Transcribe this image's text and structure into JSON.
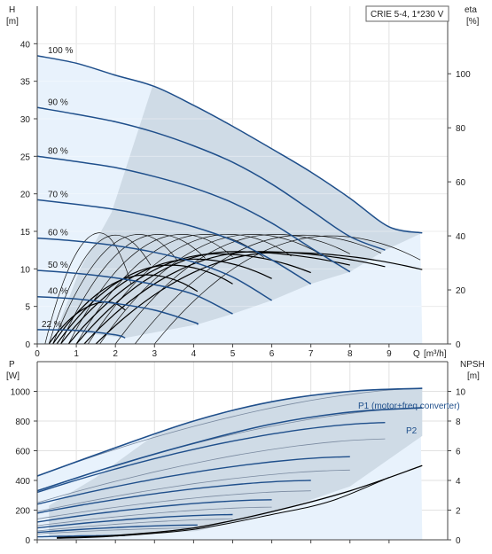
{
  "chart_data": [
    {
      "type": "line",
      "title": "CRIE 5-4, 1*230 V",
      "ylabel": "H",
      "yunit": "[m]",
      "y2label": "eta",
      "y2unit": "[%]",
      "xlabel": "Q",
      "xunit": "[m³/h]",
      "xlim": [
        0,
        10.5
      ],
      "ylim": [
        0,
        45
      ],
      "y2lim": [
        0,
        125
      ],
      "xticks": [
        0,
        1,
        2,
        3,
        4,
        5,
        6,
        7,
        8,
        9
      ],
      "yticks": [
        0,
        5,
        10,
        15,
        20,
        25,
        30,
        35,
        40
      ],
      "y2ticks": [
        0,
        20,
        40,
        60,
        80,
        100
      ],
      "grid": true,
      "series": [
        {
          "name": "100 %",
          "q_max": 9.85,
          "values": [
            [
              0,
              38.4
            ],
            [
              1,
              37.4
            ],
            [
              2,
              35.8
            ],
            [
              3,
              34.3
            ],
            [
              4,
              31.8
            ],
            [
              5,
              29.0
            ],
            [
              6,
              26.0
            ],
            [
              7,
              22.9
            ],
            [
              8,
              19.4
            ],
            [
              9,
              15.6
            ],
            [
              9.85,
              14.8
            ]
          ]
        },
        {
          "name": "90 %",
          "q_max": 8.9,
          "values": [
            [
              0,
              31.5
            ],
            [
              1,
              30.6
            ],
            [
              2,
              29.6
            ],
            [
              3,
              28.2
            ],
            [
              4,
              26.4
            ],
            [
              5,
              24.2
            ],
            [
              6,
              21.3
            ],
            [
              7,
              17.8
            ],
            [
              8,
              14.3
            ],
            [
              8.9,
              12.5
            ]
          ]
        },
        {
          "name": "80 %",
          "q_max": 8.0,
          "values": [
            [
              0,
              25.0
            ],
            [
              1,
              24.3
            ],
            [
              2,
              23.5
            ],
            [
              3,
              22.3
            ],
            [
              4,
              20.8
            ],
            [
              5,
              18.8
            ],
            [
              6,
              16.1
            ],
            [
              7,
              12.8
            ],
            [
              8,
              9.6
            ]
          ]
        },
        {
          "name": "70 %",
          "q_max": 7.0,
          "values": [
            [
              0,
              19.2
            ],
            [
              1,
              18.6
            ],
            [
              2,
              17.9
            ],
            [
              3,
              16.9
            ],
            [
              4,
              15.6
            ],
            [
              5,
              13.8
            ],
            [
              6,
              11.2
            ],
            [
              7,
              8.0
            ]
          ]
        },
        {
          "name": "60 %",
          "q_max": 6.0,
          "values": [
            [
              0,
              14.1
            ],
            [
              1,
              13.7
            ],
            [
              2,
              13.1
            ],
            [
              3,
              12.2
            ],
            [
              4,
              10.9
            ],
            [
              5,
              8.9
            ],
            [
              6,
              5.8
            ]
          ]
        },
        {
          "name": "50 %",
          "q_max": 5.0,
          "values": [
            [
              0,
              9.8
            ],
            [
              1,
              9.4
            ],
            [
              2,
              8.8
            ],
            [
              3,
              7.9
            ],
            [
              4,
              6.6
            ],
            [
              5,
              4.0
            ]
          ]
        },
        {
          "name": "40 %",
          "q_max": 4.1,
          "values": [
            [
              0,
              6.3
            ],
            [
              1,
              6.0
            ],
            [
              2,
              5.4
            ],
            [
              3,
              4.5
            ],
            [
              4,
              2.9
            ],
            [
              4.1,
              2.6
            ]
          ]
        },
        {
          "name": "22 %",
          "q_max": 2.25,
          "values": [
            [
              0,
              1.9
            ],
            [
              1,
              1.8
            ],
            [
              2,
              1.2
            ],
            [
              2.25,
              0.8
            ]
          ]
        }
      ]
    },
    {
      "type": "line",
      "ylabel": "P",
      "yunit": "[W]",
      "y2label": "NPSH",
      "y2unit": "[m]",
      "xlim": [
        0,
        10.5
      ],
      "ylim": [
        0,
        1200
      ],
      "y2lim": [
        0,
        12
      ],
      "yticks": [
        0,
        200,
        400,
        600,
        800,
        1000
      ],
      "y2ticks": [
        0,
        2,
        4,
        6,
        8,
        10
      ],
      "series": [
        {
          "name": "P1 (motor+freq.converter)",
          "values": [
            [
              0,
              430
            ],
            [
              2,
              620
            ],
            [
              4,
              800
            ],
            [
              6,
              930
            ],
            [
              8,
              1000
            ],
            [
              9.85,
              1020
            ]
          ]
        },
        {
          "name": "P2",
          "values": [
            [
              0,
              330
            ],
            [
              2,
              500
            ],
            [
              4,
              650
            ],
            [
              6,
              780
            ],
            [
              8,
              860
            ],
            [
              9.85,
              890
            ]
          ]
        }
      ]
    }
  ]
}
